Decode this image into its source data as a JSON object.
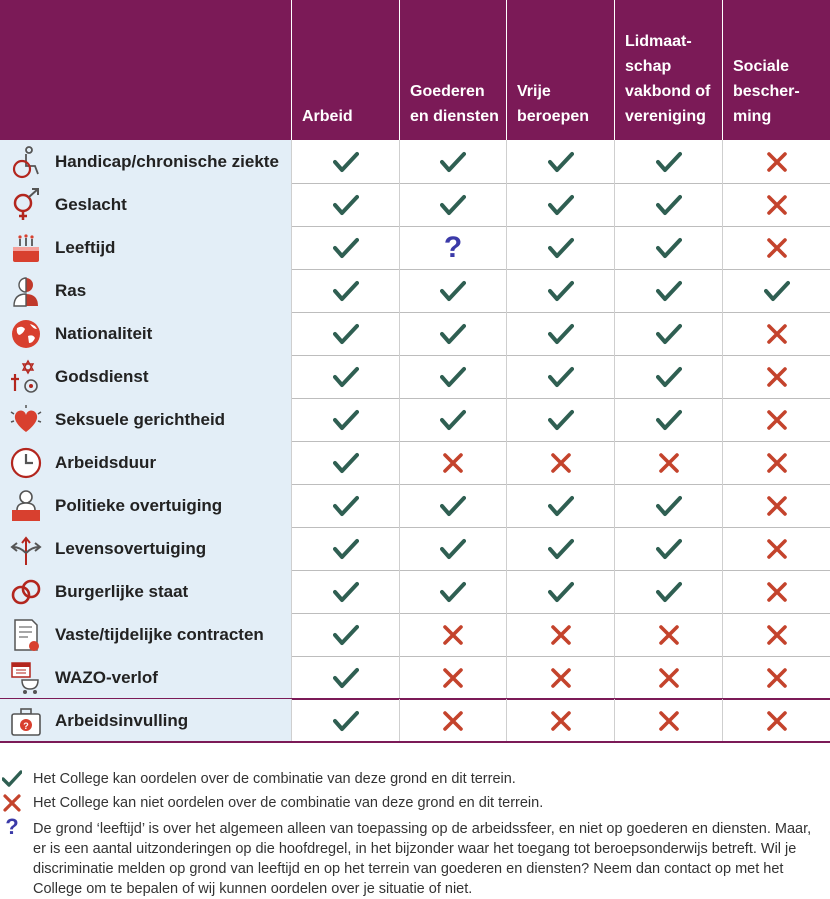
{
  "columns": [
    "Arbeid",
    "Goederen\nen diensten",
    "Vrije\nberoepen",
    "Lidmaat-\nschap\nvakbond of\nvereniging",
    "Sociale\nbescher-\nming"
  ],
  "rows": [
    {
      "label": "Handicap/chronische ziekte",
      "icon": "wheelchair-icon",
      "cells": [
        "check",
        "check",
        "check",
        "check",
        "cross"
      ]
    },
    {
      "label": "Geslacht",
      "icon": "gender-icon",
      "cells": [
        "check",
        "check",
        "check",
        "check",
        "cross"
      ]
    },
    {
      "label": "Leeftijd",
      "icon": "birthday-cake-icon",
      "cells": [
        "check",
        "question",
        "check",
        "check",
        "cross"
      ]
    },
    {
      "label": "Ras",
      "icon": "person-icon",
      "cells": [
        "check",
        "check",
        "check",
        "check",
        "check"
      ]
    },
    {
      "label": "Nationaliteit",
      "icon": "globe-icon",
      "cells": [
        "check",
        "check",
        "check",
        "check",
        "cross"
      ]
    },
    {
      "label": "Godsdienst",
      "icon": "religion-symbols-icon",
      "cells": [
        "check",
        "check",
        "check",
        "check",
        "cross"
      ]
    },
    {
      "label": "Seksuele gerichtheid",
      "icon": "heart-icon",
      "cells": [
        "check",
        "check",
        "check",
        "check",
        "cross"
      ]
    },
    {
      "label": "Arbeidsduur",
      "icon": "clock-icon",
      "cells": [
        "check",
        "cross",
        "cross",
        "cross",
        "cross"
      ]
    },
    {
      "label": "Politieke overtuiging",
      "icon": "speaker-podium-icon",
      "cells": [
        "check",
        "check",
        "check",
        "check",
        "cross"
      ]
    },
    {
      "label": "Levensovertuiging",
      "icon": "crossroads-arrows-icon",
      "cells": [
        "check",
        "check",
        "check",
        "check",
        "cross"
      ]
    },
    {
      "label": "Burgerlijke staat",
      "icon": "rings-icon",
      "cells": [
        "check",
        "check",
        "check",
        "check",
        "cross"
      ]
    },
    {
      "label": "Vaste/tijdelijke contracten",
      "icon": "contract-document-icon",
      "cells": [
        "check",
        "cross",
        "cross",
        "cross",
        "cross"
      ]
    },
    {
      "label": "WAZO-verlof",
      "icon": "stroller-calendar-icon",
      "cells": [
        "check",
        "cross",
        "cross",
        "cross",
        "cross"
      ]
    },
    {
      "label": "Arbeidsinvulling",
      "icon": "briefcase-question-icon",
      "cells": [
        "check",
        "cross",
        "cross",
        "cross",
        "cross"
      ]
    }
  ],
  "legend": {
    "check": "Het College kan oordelen over de combinatie van deze grond en dit terrein.",
    "cross": "Het College kan niet oordelen over de combinatie van deze grond en dit terrein.",
    "question": "De grond ‘leeftijd’ is over het algemeen alleen van toepassing op de arbeidssfeer, en niet op goederen en diensten. Maar, er is een aantal uitzonderingen op die hoofdregel, in het bijzonder waar het toegang tot beroepsonderwijs betreft. Wil je discriminatie melden op grond van leeftijd en op het terrein van goederen en diensten? Neem dan contact op met het College om te bepalen of wij kunnen oordelen over je situatie of niet."
  },
  "colors": {
    "header": "#7b1a57",
    "check": "#2f5f52",
    "cross": "#c4432c",
    "question": "#3b3aa8",
    "label_bg": "#e3eef7"
  }
}
